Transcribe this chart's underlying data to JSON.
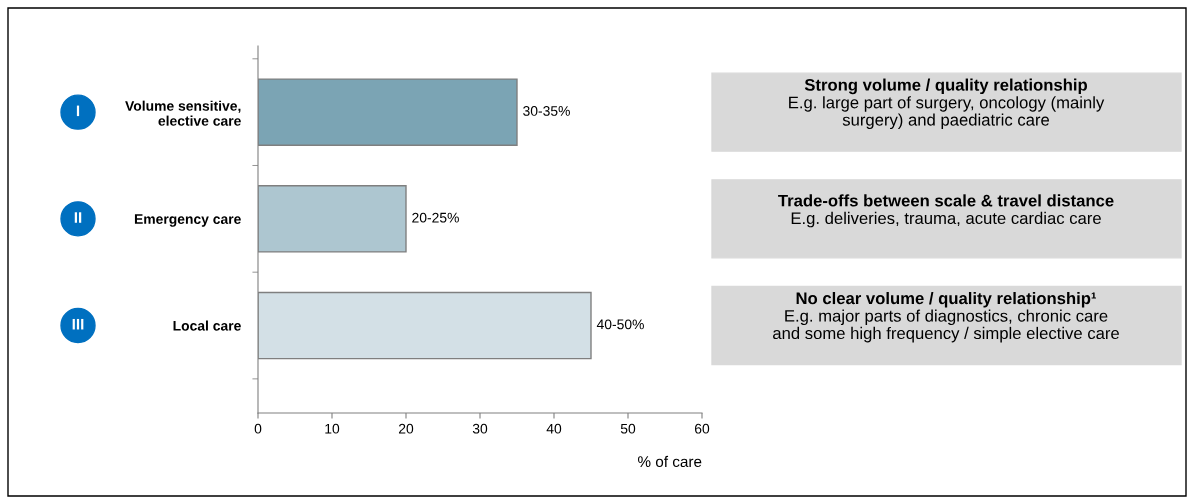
{
  "chart_data": {
    "type": "bar",
    "orientation": "horizontal",
    "categories": [
      "Volume sensitive,\nelective care",
      "Emergency care",
      "Local care"
    ],
    "values": [
      35,
      20,
      45
    ],
    "colors": [
      "#7ba4b4",
      "#adc6d0",
      "#d3e0e6"
    ],
    "xlim": [
      0,
      60
    ],
    "xticks": [
      0,
      10,
      20,
      30,
      40,
      50,
      60
    ],
    "xlabel": "% of care",
    "grid": false,
    "legend": false,
    "annotations": [
      {
        "text": "30-35%",
        "x": 35,
        "y": "Volume sensitive,\nelective care"
      },
      {
        "text": "20-25%",
        "x": 20,
        "y": "Emergency care"
      },
      {
        "text": "40-50%",
        "x": 45,
        "y": "Local care"
      },
      "I",
      "II",
      "III",
      "Strong volume / quality relationship",
      "E.g. large part of surgery, oncology (mainly\nsurgery) and paediatric care",
      "Trade-offs between scale & travel distance",
      "E.g. deliveries, trauma, acute cardiac care",
      "No clear volume / quality relationship¹",
      "E.g. major parts of diagnostics, chronic care\nand some high frequency / simple elective care"
    ]
  }
}
